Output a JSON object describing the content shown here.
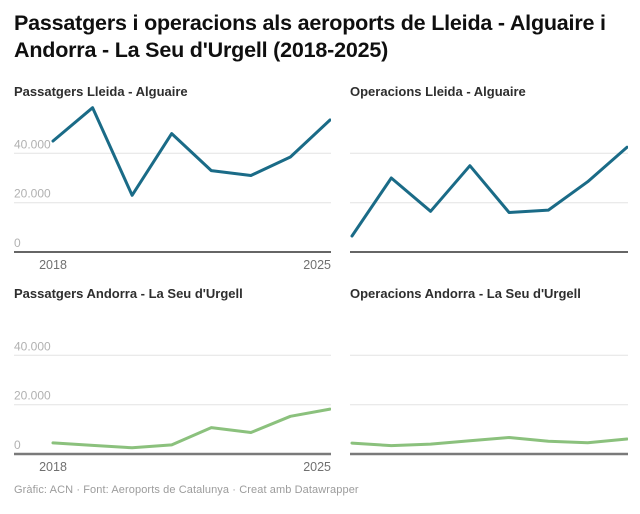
{
  "header": {
    "title": "Passatgers i operacions als aeroports de Lleida - Alguaire i Andorra - La Seu d'Urgell (2018-2025)"
  },
  "footer": {
    "text": "Gràfic: ACN · Font: Aeroports de Catalunya · Creat amb Datawrapper"
  },
  "colors": {
    "teal_line": "#1a6b87",
    "green_line": "#8bc17d",
    "grid_line": "#e4e4e4",
    "y_tick_label": "#b1b1b1",
    "x_tick_label": "#707070"
  },
  "chart_data": [
    {
      "type": "line",
      "title": "Passatgers Lleida - Alguaire",
      "x": [
        2018,
        2019,
        2020,
        2021,
        2022,
        2023,
        2024,
        2025
      ],
      "values": [
        45000,
        58500,
        23000,
        48000,
        33000,
        31000,
        38500,
        53500
      ],
      "color": "#1a6b87",
      "ylim": [
        0,
        60000
      ],
      "grid": true,
      "y_ticks": [
        {
          "value": 0,
          "label": "0"
        },
        {
          "value": 20000,
          "label": "20.000"
        },
        {
          "value": 40000,
          "label": "40.000"
        }
      ],
      "x_tick_labels": [
        {
          "index": 0,
          "label": "2018"
        },
        {
          "index": 7,
          "label": "2025"
        }
      ]
    },
    {
      "type": "line",
      "title": "Operacions Lleida - Alguaire",
      "x": [
        2018,
        2019,
        2020,
        2021,
        2022,
        2023,
        2024,
        2025
      ],
      "values": [
        6500,
        30000,
        16500,
        35000,
        16000,
        17000,
        28500,
        42500
      ],
      "color": "#1a6b87",
      "ylim": [
        0,
        60000
      ],
      "grid": true,
      "y_ticks": [
        {
          "value": 0,
          "label": ""
        },
        {
          "value": 20000,
          "label": ""
        },
        {
          "value": 40000,
          "label": ""
        }
      ],
      "x_tick_labels": []
    },
    {
      "type": "line",
      "title": "Passatgers Andorra - La Seu d'Urgell",
      "x": [
        2018,
        2019,
        2020,
        2021,
        2022,
        2023,
        2024,
        2025
      ],
      "values": [
        4500,
        3500,
        2500,
        3700,
        10700,
        8700,
        15300,
        18200
      ],
      "color": "#8bc17d",
      "ylim": [
        0,
        60000
      ],
      "grid": true,
      "y_ticks": [
        {
          "value": 0,
          "label": "0"
        },
        {
          "value": 20000,
          "label": "20.000"
        },
        {
          "value": 40000,
          "label": "40.000"
        }
      ],
      "x_tick_labels": [
        {
          "index": 0,
          "label": "2018"
        },
        {
          "index": 7,
          "label": "2025"
        }
      ]
    },
    {
      "type": "line",
      "title": "Operacions Andorra - La Seu d'Urgell",
      "x": [
        2018,
        2019,
        2020,
        2021,
        2022,
        2023,
        2024,
        2025
      ],
      "values": [
        4400,
        3400,
        4000,
        5400,
        6700,
        5200,
        4600,
        6100
      ],
      "color": "#8bc17d",
      "ylim": [
        0,
        60000
      ],
      "grid": true,
      "y_ticks": [
        {
          "value": 0,
          "label": ""
        },
        {
          "value": 20000,
          "label": ""
        },
        {
          "value": 40000,
          "label": ""
        }
      ],
      "x_tick_labels": []
    }
  ]
}
